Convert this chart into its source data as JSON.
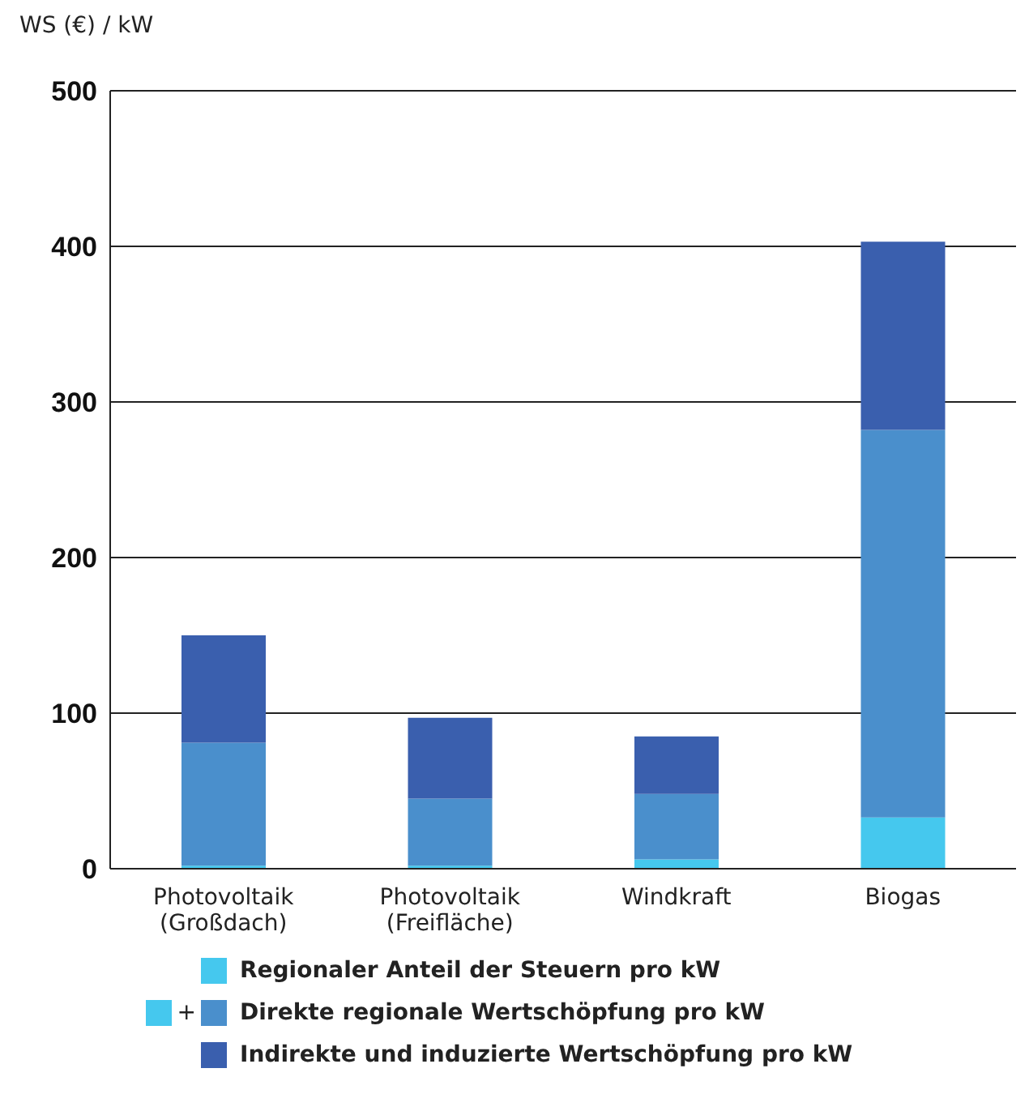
{
  "chart_data": {
    "type": "bar",
    "stacked": true,
    "ylabel": "WS (€) / kW",
    "categories": [
      "Photovoltaik\n(Großdach)",
      "Photovoltaik\n(Freifläche)",
      "Windkraft",
      "Biogas"
    ],
    "series": [
      {
        "name": "Regionaler Anteil der Steuern pro kW",
        "color": "#45c8ee",
        "values": [
          2,
          2,
          6,
          33
        ]
      },
      {
        "name": "Direkte regionale Wertschöpfung pro kW",
        "color": "#4a8fcc",
        "values": [
          79,
          43,
          42,
          249
        ]
      },
      {
        "name": "Indirekte und induzierte Wertschöpfung pro kW",
        "color": "#3a5fae",
        "values": [
          69,
          52,
          37,
          121
        ]
      }
    ],
    "ylim": [
      0,
      500
    ],
    "yticks": [
      0,
      100,
      200,
      300,
      400,
      500
    ],
    "grid": "y",
    "legend": "bottom",
    "annotations": [
      "+"
    ]
  }
}
